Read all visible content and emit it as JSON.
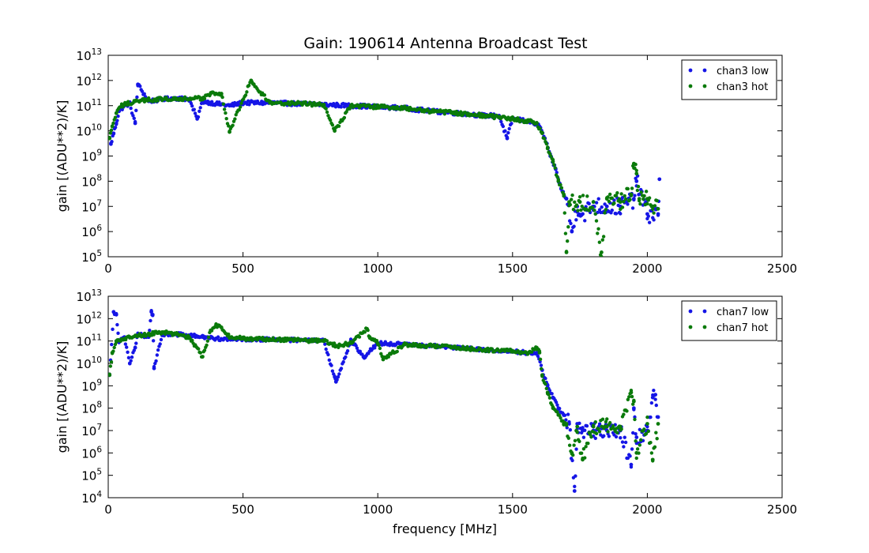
{
  "title": "Gain: 190614 Antenna Broadcast Test",
  "colors": {
    "low": "#1515e6",
    "hot": "#0a7a0a"
  },
  "xlabel": "frequency [MHz]",
  "chart_data": [
    {
      "type": "scatter",
      "title": "Gain: 190614 Antenna Broadcast Test",
      "xlabel": "",
      "ylabel": "gain [(ADU**2)/K]",
      "xlim": [
        0,
        2500
      ],
      "ylim": [
        100000,
        10000000000000
      ],
      "yscale": "log",
      "xticks": [
        0,
        500,
        1000,
        1500,
        2000,
        2500
      ],
      "yticks_exp": [
        5,
        6,
        7,
        8,
        9,
        10,
        11,
        12,
        13
      ],
      "legend_position": "top-right",
      "series": [
        {
          "name": "chan3 low",
          "color": "#1515e6",
          "x": [
            10,
            20,
            30,
            40,
            60,
            80,
            100,
            110,
            150,
            200,
            250,
            300,
            330,
            350,
            400,
            450,
            500,
            550,
            600,
            700,
            800,
            900,
            1000,
            1100,
            1200,
            1300,
            1400,
            1450,
            1480,
            1500,
            1550,
            1580,
            1600,
            1620,
            1640,
            1660,
            1680,
            1700,
            1720,
            1740,
            1760,
            1800,
            1850,
            1900,
            1950,
            1960,
            2000,
            2040,
            2045
          ],
          "y": [
            3000000000,
            8000000000,
            20000000000,
            60000000000,
            100000000000,
            120000000000,
            20000000000,
            700000000000,
            150000000000,
            180000000000,
            200000000000,
            180000000000,
            30000000000,
            150000000000,
            120000000000,
            100000000000,
            130000000000,
            130000000000,
            130000000000,
            120000000000,
            110000000000,
            100000000000,
            90000000000,
            80000000000,
            60000000000,
            50000000000,
            40000000000,
            40000000000,
            5000000000,
            30000000000,
            25000000000,
            20000000000,
            15000000000,
            5000000000,
            1000000000,
            300000000,
            50000000,
            20000000,
            1000000,
            10000000,
            5000000,
            10000000,
            10000000,
            10000000,
            20000000,
            100000000,
            5000000,
            5000000,
            120000000
          ]
        },
        {
          "name": "chan3 hot",
          "color": "#0a7a0a",
          "x": [
            5,
            15,
            30,
            50,
            70,
            100,
            150,
            200,
            250,
            300,
            350,
            380,
            420,
            450,
            530,
            540,
            600,
            700,
            800,
            840,
            900,
            1000,
            1100,
            1200,
            1300,
            1400,
            1500,
            1550,
            1590,
            1610,
            1630,
            1650,
            1670,
            1690,
            1700,
            1710,
            1750,
            1800,
            1830,
            1850,
            1900,
            1940,
            1950,
            1960,
            1970,
            2000,
            2020,
            2040
          ],
          "y": [
            5000000000,
            15000000000,
            50000000000,
            100000000000,
            120000000000,
            150000000000,
            170000000000,
            180000000000,
            200000000000,
            180000000000,
            200000000000,
            300000000000,
            300000000000,
            9000000000,
            1000000000000,
            700000000000,
            130000000000,
            120000000000,
            110000000000,
            10000000000,
            100000000000,
            90000000000,
            80000000000,
            60000000000,
            50000000000,
            40000000000,
            30000000000,
            25000000000,
            20000000000,
            8000000000,
            2000000000,
            600000000,
            100000000,
            30000000,
            150000,
            15000000,
            15000000,
            15000000,
            150000,
            20000000,
            15000000,
            30000000,
            500000000,
            200000000,
            20000000,
            20000000,
            10000000,
            8000000
          ]
        }
      ]
    },
    {
      "type": "scatter",
      "xlabel": "frequency [MHz]",
      "ylabel": "gain [(ADU**2)/K]",
      "xlim": [
        0,
        2500
      ],
      "ylim": [
        10000,
        10000000000000
      ],
      "yscale": "log",
      "xticks": [
        0,
        500,
        1000,
        1500,
        2000,
        2500
      ],
      "yticks_exp": [
        4,
        5,
        6,
        7,
        8,
        9,
        10,
        11,
        12,
        13
      ],
      "legend_position": "top-right",
      "series": [
        {
          "name": "chan7 low",
          "color": "#1515e6",
          "x": [
            5,
            20,
            30,
            40,
            60,
            80,
            100,
            110,
            150,
            160,
            165,
            170,
            200,
            250,
            300,
            350,
            400,
            450,
            500,
            550,
            600,
            700,
            800,
            840,
            845,
            900,
            950,
            1000,
            1100,
            1200,
            1300,
            1400,
            1500,
            1550,
            1590,
            1610,
            1630,
            1650,
            1670,
            1690,
            1710,
            1730,
            1740,
            1760,
            1800,
            1850,
            1900,
            1940,
            1950,
            1960,
            2000,
            2020,
            2030,
            2040
          ],
          "y": [
            3000000000,
            2000000000000,
            1500000000000,
            100000000000,
            150000000000,
            10000000000,
            50000000000,
            200000000000,
            150000000000,
            2000000000000,
            1500000000000,
            6000000000,
            200000000000,
            200000000000,
            180000000000,
            150000000000,
            130000000000,
            120000000000,
            120000000000,
            120000000000,
            120000000000,
            110000000000,
            100000000000,
            2500000000,
            1500000000,
            100000000000,
            20000000000,
            80000000000,
            70000000000,
            60000000000,
            50000000000,
            40000000000,
            35000000000,
            30000000000,
            30000000000,
            5000000000,
            1000000000,
            300000000,
            100000000,
            50000000,
            20000000,
            20000,
            20000000,
            10000000,
            10000000,
            10000000,
            10000000,
            300000,
            100000000,
            5000000,
            10000000,
            300000000,
            400000000,
            40000000
          ]
        },
        {
          "name": "chan7 hot",
          "color": "#0a7a0a",
          "x": [
            5,
            15,
            30,
            50,
            80,
            120,
            150,
            200,
            250,
            300,
            350,
            380,
            400,
            420,
            450,
            500,
            550,
            600,
            700,
            800,
            850,
            900,
            960,
            970,
            1000,
            1020,
            1100,
            1200,
            1300,
            1400,
            1500,
            1560,
            1590,
            1600,
            1610,
            1630,
            1650,
            1670,
            1690,
            1700,
            1720,
            1740,
            1760,
            1800,
            1850,
            1900,
            1940,
            1950,
            1960,
            2000,
            2020,
            2040
          ],
          "y": [
            3000000000,
            30000000000,
            100000000000,
            120000000000,
            150000000000,
            180000000000,
            200000000000,
            250000000000,
            200000000000,
            150000000000,
            20000000000,
            300000000000,
            500000000000,
            400000000000,
            150000000000,
            130000000000,
            120000000000,
            120000000000,
            110000000000,
            100000000000,
            60000000000,
            80000000000,
            350000000000,
            150000000000,
            80000000000,
            15000000000,
            70000000000,
            60000000000,
            50000000000,
            40000000000,
            35000000000,
            30000000000,
            50000000000,
            30000000000,
            3000000000,
            500000000,
            100000000,
            50000000,
            20000000,
            20000000,
            1000000,
            15000000,
            500000,
            15000000,
            15000000,
            15000000,
            500000000,
            200000000,
            1000000,
            20000000,
            500000,
            20000000
          ]
        }
      ]
    }
  ]
}
